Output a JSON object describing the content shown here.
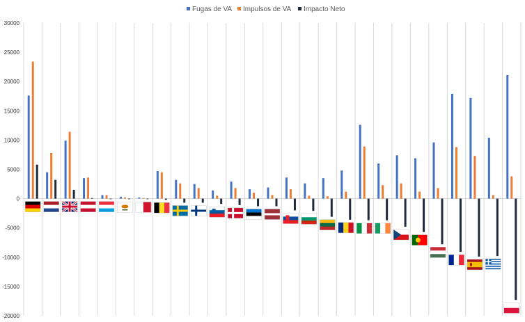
{
  "chart_data": {
    "type": "bar",
    "legend_position": "top",
    "grid": true,
    "ylim": [
      -20000,
      30000
    ],
    "y_ticks": [
      30000,
      25000,
      20000,
      15000,
      10000,
      5000,
      0,
      -5000,
      -10000,
      -15000,
      -20000
    ],
    "colors": {
      "Fugas de VA": "#4472C4",
      "Impulsos de VA": "#ED7D31",
      "Impacto Neto": "#1F2A3C"
    },
    "categories": [
      "Alemania",
      "Países Bajos",
      "Reino Unido",
      "Austria",
      "Luxemburgo",
      "Chipre",
      "Malta",
      "Bélgica",
      "Suecia",
      "Finlandia",
      "Eslovenia",
      "Dinamarca",
      "Estonia",
      "Letonia",
      "Eslovaquia",
      "Bulgaria",
      "Lituania",
      "Rumanía",
      "Italia",
      "Irlanda",
      "República Checa",
      "Portugal",
      "Hungría",
      "Francia",
      "España",
      "Grecia",
      "Polonia"
    ],
    "series": [
      {
        "name": "Fugas de VA",
        "values": [
          17600,
          4500,
          9900,
          3500,
          600,
          300,
          200,
          4700,
          3200,
          2500,
          1400,
          2900,
          1600,
          1900,
          3600,
          2600,
          3500,
          4800,
          12600,
          6000,
          7400,
          6900,
          9600,
          17900,
          17200,
          10400,
          21100
        ]
      },
      {
        "name": "Impulsos de VA",
        "values": [
          23400,
          7800,
          11400,
          3600,
          600,
          200,
          100,
          4500,
          2600,
          1800,
          500,
          1800,
          1000,
          600,
          1600,
          500,
          400,
          1200,
          8900,
          2300,
          2600,
          1200,
          1800,
          8800,
          7300,
          600,
          3800
        ]
      },
      {
        "name": "Impacto Neto",
        "values": [
          5800,
          3200,
          1500,
          100,
          0,
          -100,
          -100,
          -200,
          -700,
          -700,
          -900,
          -1100,
          -1300,
          -1300,
          -2000,
          -2100,
          -3100,
          -3600,
          -3700,
          -3700,
          -4800,
          -5700,
          -7800,
          -9100,
          -9900,
          -9800,
          -17300
        ]
      }
    ]
  }
}
